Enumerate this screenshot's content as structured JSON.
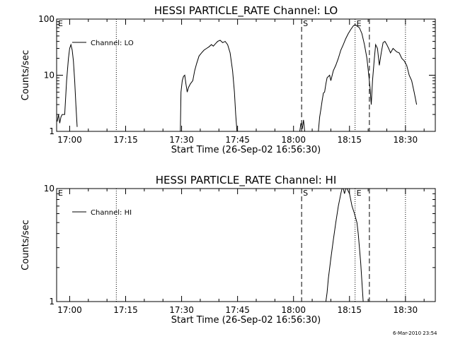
{
  "footer": {
    "timestamp": "6-Mar-2010 23:54"
  },
  "chart_data": [
    {
      "type": "line",
      "title": "HESSI PARTICLE_RATE Channel: LO",
      "xlabel": "Start Time (26-Sep-02 16:56:30)",
      "ylabel": "Counts/sec",
      "yscale": "log",
      "xlim": [
        "16:56:30",
        "18:38:00"
      ],
      "ylim": [
        1,
        100
      ],
      "x_ticks": [
        "17:00",
        "17:15",
        "17:30",
        "17:45",
        "18:00",
        "18:15",
        "18:30"
      ],
      "y_ticks": [
        "1",
        "10",
        "100"
      ],
      "legend": {
        "position": "top-left",
        "entries": [
          "Channel: LO"
        ]
      },
      "grid": false,
      "markers": [
        {
          "label": "E",
          "time": "16:56:30",
          "style": "dotted"
        },
        {
          "label": "",
          "time": "17:12:30",
          "style": "dotted"
        },
        {
          "label": "S",
          "time": "18:02:10",
          "style": "dashed"
        },
        {
          "label": "E",
          "time": "18:16:30",
          "style": "dotted"
        },
        {
          "label": "",
          "time": "18:20:20",
          "style": "dashed"
        },
        {
          "label": "",
          "time": "18:30:00",
          "style": "dotted"
        }
      ],
      "series": [
        {
          "name": "Channel: LO",
          "segments": [
            [
              [
                "16:56:40",
                1.5
              ],
              [
                "16:57:00",
                2.0
              ],
              [
                "16:57:20",
                1.4
              ],
              [
                "16:57:40",
                1.8
              ],
              [
                "16:58:00",
                2.0
              ],
              [
                "16:58:40",
                2.0
              ],
              [
                "16:59:10",
                8
              ],
              [
                "16:59:40",
                20
              ],
              [
                "17:00:00",
                30
              ],
              [
                "17:00:20",
                35
              ],
              [
                "17:00:40",
                28
              ],
              [
                "17:01:00",
                18
              ],
              [
                "17:01:20",
                8
              ],
              [
                "17:01:40",
                3
              ],
              [
                "17:02:00",
                1.2
              ]
            ],
            [
              [
                "17:29:40",
                1.0
              ],
              [
                "17:29:50",
                5
              ],
              [
                "17:30:10",
                8
              ],
              [
                "17:30:30",
                9.5
              ],
              [
                "17:30:50",
                10
              ],
              [
                "17:31:10",
                7
              ],
              [
                "17:31:30",
                5
              ],
              [
                "17:31:50",
                6
              ],
              [
                "17:32:20",
                7
              ],
              [
                "17:33:00",
                8
              ],
              [
                "17:33:30",
                12
              ],
              [
                "17:34:00",
                16
              ],
              [
                "17:34:40",
                22
              ],
              [
                "17:35:20",
                25
              ],
              [
                "17:36:00",
                28
              ],
              [
                "17:36:40",
                30
              ],
              [
                "17:37:20",
                32
              ],
              [
                "17:38:00",
                35
              ],
              [
                "17:38:30",
                33
              ],
              [
                "17:39:00",
                36
              ],
              [
                "17:39:40",
                40
              ],
              [
                "17:40:20",
                42
              ],
              [
                "17:41:00",
                38
              ],
              [
                "17:41:40",
                40
              ],
              [
                "17:42:20",
                35
              ],
              [
                "17:43:00",
                25
              ],
              [
                "17:43:40",
                12
              ],
              [
                "17:44:10",
                5
              ],
              [
                "17:44:30",
                2
              ],
              [
                "17:44:50",
                1.0
              ]
            ],
            [
              [
                "18:01:40",
                1.0
              ],
              [
                "18:02:00",
                1.4
              ],
              [
                "18:02:20",
                1.1
              ],
              [
                "18:02:40",
                1.6
              ],
              [
                "18:03:00",
                1.0
              ]
            ],
            [
              [
                "18:06:40",
                1.0
              ],
              [
                "18:07:00",
                1.8
              ],
              [
                "18:07:20",
                2.5
              ],
              [
                "18:07:40",
                3.5
              ],
              [
                "18:08:00",
                4.8
              ],
              [
                "18:08:20",
                5
              ],
              [
                "18:08:40",
                7
              ],
              [
                "18:09:00",
                9
              ],
              [
                "18:09:40",
                10
              ],
              [
                "18:10:00",
                8
              ],
              [
                "18:10:40",
                12
              ],
              [
                "18:11:20",
                15
              ],
              [
                "18:12:00",
                20
              ],
              [
                "18:12:40",
                28
              ],
              [
                "18:13:20",
                35
              ],
              [
                "18:14:00",
                45
              ],
              [
                "18:14:40",
                55
              ],
              [
                "18:15:20",
                65
              ],
              [
                "18:16:00",
                75
              ],
              [
                "18:16:30",
                80
              ],
              [
                "18:17:00",
                75
              ],
              [
                "18:17:40",
                70
              ],
              [
                "18:18:20",
                55
              ],
              [
                "18:19:00",
                35
              ],
              [
                "18:19:40",
                20
              ],
              [
                "18:20:10",
                10
              ],
              [
                "18:20:30",
                6
              ],
              [
                "18:20:50",
                3
              ],
              [
                "18:21:10",
                8
              ],
              [
                "18:21:40",
                20
              ],
              [
                "18:22:00",
                35
              ],
              [
                "18:22:30",
                30
              ],
              [
                "18:23:00",
                15
              ],
              [
                "18:23:30",
                25
              ],
              [
                "18:24:00",
                38
              ],
              [
                "18:24:30",
                40
              ],
              [
                "18:25:00",
                35
              ],
              [
                "18:25:30",
                30
              ],
              [
                "18:26:00",
                25
              ],
              [
                "18:26:40",
                30
              ],
              [
                "18:27:10",
                28
              ],
              [
                "18:27:40",
                26
              ],
              [
                "18:28:20",
                25
              ],
              [
                "18:29:00",
                20
              ],
              [
                "18:29:40",
                18
              ],
              [
                "18:30:20",
                15
              ],
              [
                "18:31:00",
                10
              ],
              [
                "18:31:40",
                8
              ],
              [
                "18:32:20",
                5
              ],
              [
                "18:33:00",
                3
              ]
            ]
          ]
        }
      ]
    },
    {
      "type": "line",
      "title": "HESSI PARTICLE_RATE Channel: HI",
      "xlabel": "Start Time (26-Sep-02 16:56:30)",
      "ylabel": "Counts/sec",
      "yscale": "log",
      "xlim": [
        "16:56:30",
        "18:38:00"
      ],
      "ylim": [
        1,
        10
      ],
      "x_ticks": [
        "17:00",
        "17:15",
        "17:30",
        "17:45",
        "18:00",
        "18:15",
        "18:30"
      ],
      "y_ticks": [
        "1",
        "10"
      ],
      "legend": {
        "position": "top-left",
        "entries": [
          "Channel: HI"
        ]
      },
      "grid": false,
      "markers": [
        {
          "label": "E",
          "time": "16:56:30",
          "style": "dotted"
        },
        {
          "label": "",
          "time": "17:12:30",
          "style": "dotted"
        },
        {
          "label": "S",
          "time": "18:02:10",
          "style": "dashed"
        },
        {
          "label": "E",
          "time": "18:16:30",
          "style": "dotted"
        },
        {
          "label": "",
          "time": "18:20:20",
          "style": "dashed"
        },
        {
          "label": "",
          "time": "18:30:00",
          "style": "dotted"
        }
      ],
      "series": [
        {
          "name": "Channel: HI",
          "segments": [
            [
              [
                "18:08:40",
                1.0
              ],
              [
                "18:09:00",
                1.2
              ],
              [
                "18:09:20",
                1.6
              ],
              [
                "18:10:00",
                2.4
              ],
              [
                "18:10:40",
                3.5
              ],
              [
                "18:11:20",
                5
              ],
              [
                "18:12:00",
                7
              ],
              [
                "18:12:40",
                9
              ],
              [
                "18:13:00",
                10
              ],
              [
                "18:13:20",
                10
              ],
              [
                "18:13:40",
                9
              ],
              [
                "18:14:00",
                10
              ],
              [
                "18:14:20",
                10
              ],
              [
                "18:14:40",
                9.5
              ],
              [
                "18:15:00",
                9
              ],
              [
                "18:15:40",
                7
              ],
              [
                "18:16:20",
                6
              ],
              [
                "18:17:00",
                5
              ],
              [
                "18:17:20",
                4
              ],
              [
                "18:17:40",
                3
              ],
              [
                "18:18:00",
                2.2
              ],
              [
                "18:18:20",
                1.5
              ],
              [
                "18:18:40",
                1.0
              ]
            ]
          ]
        }
      ]
    }
  ]
}
